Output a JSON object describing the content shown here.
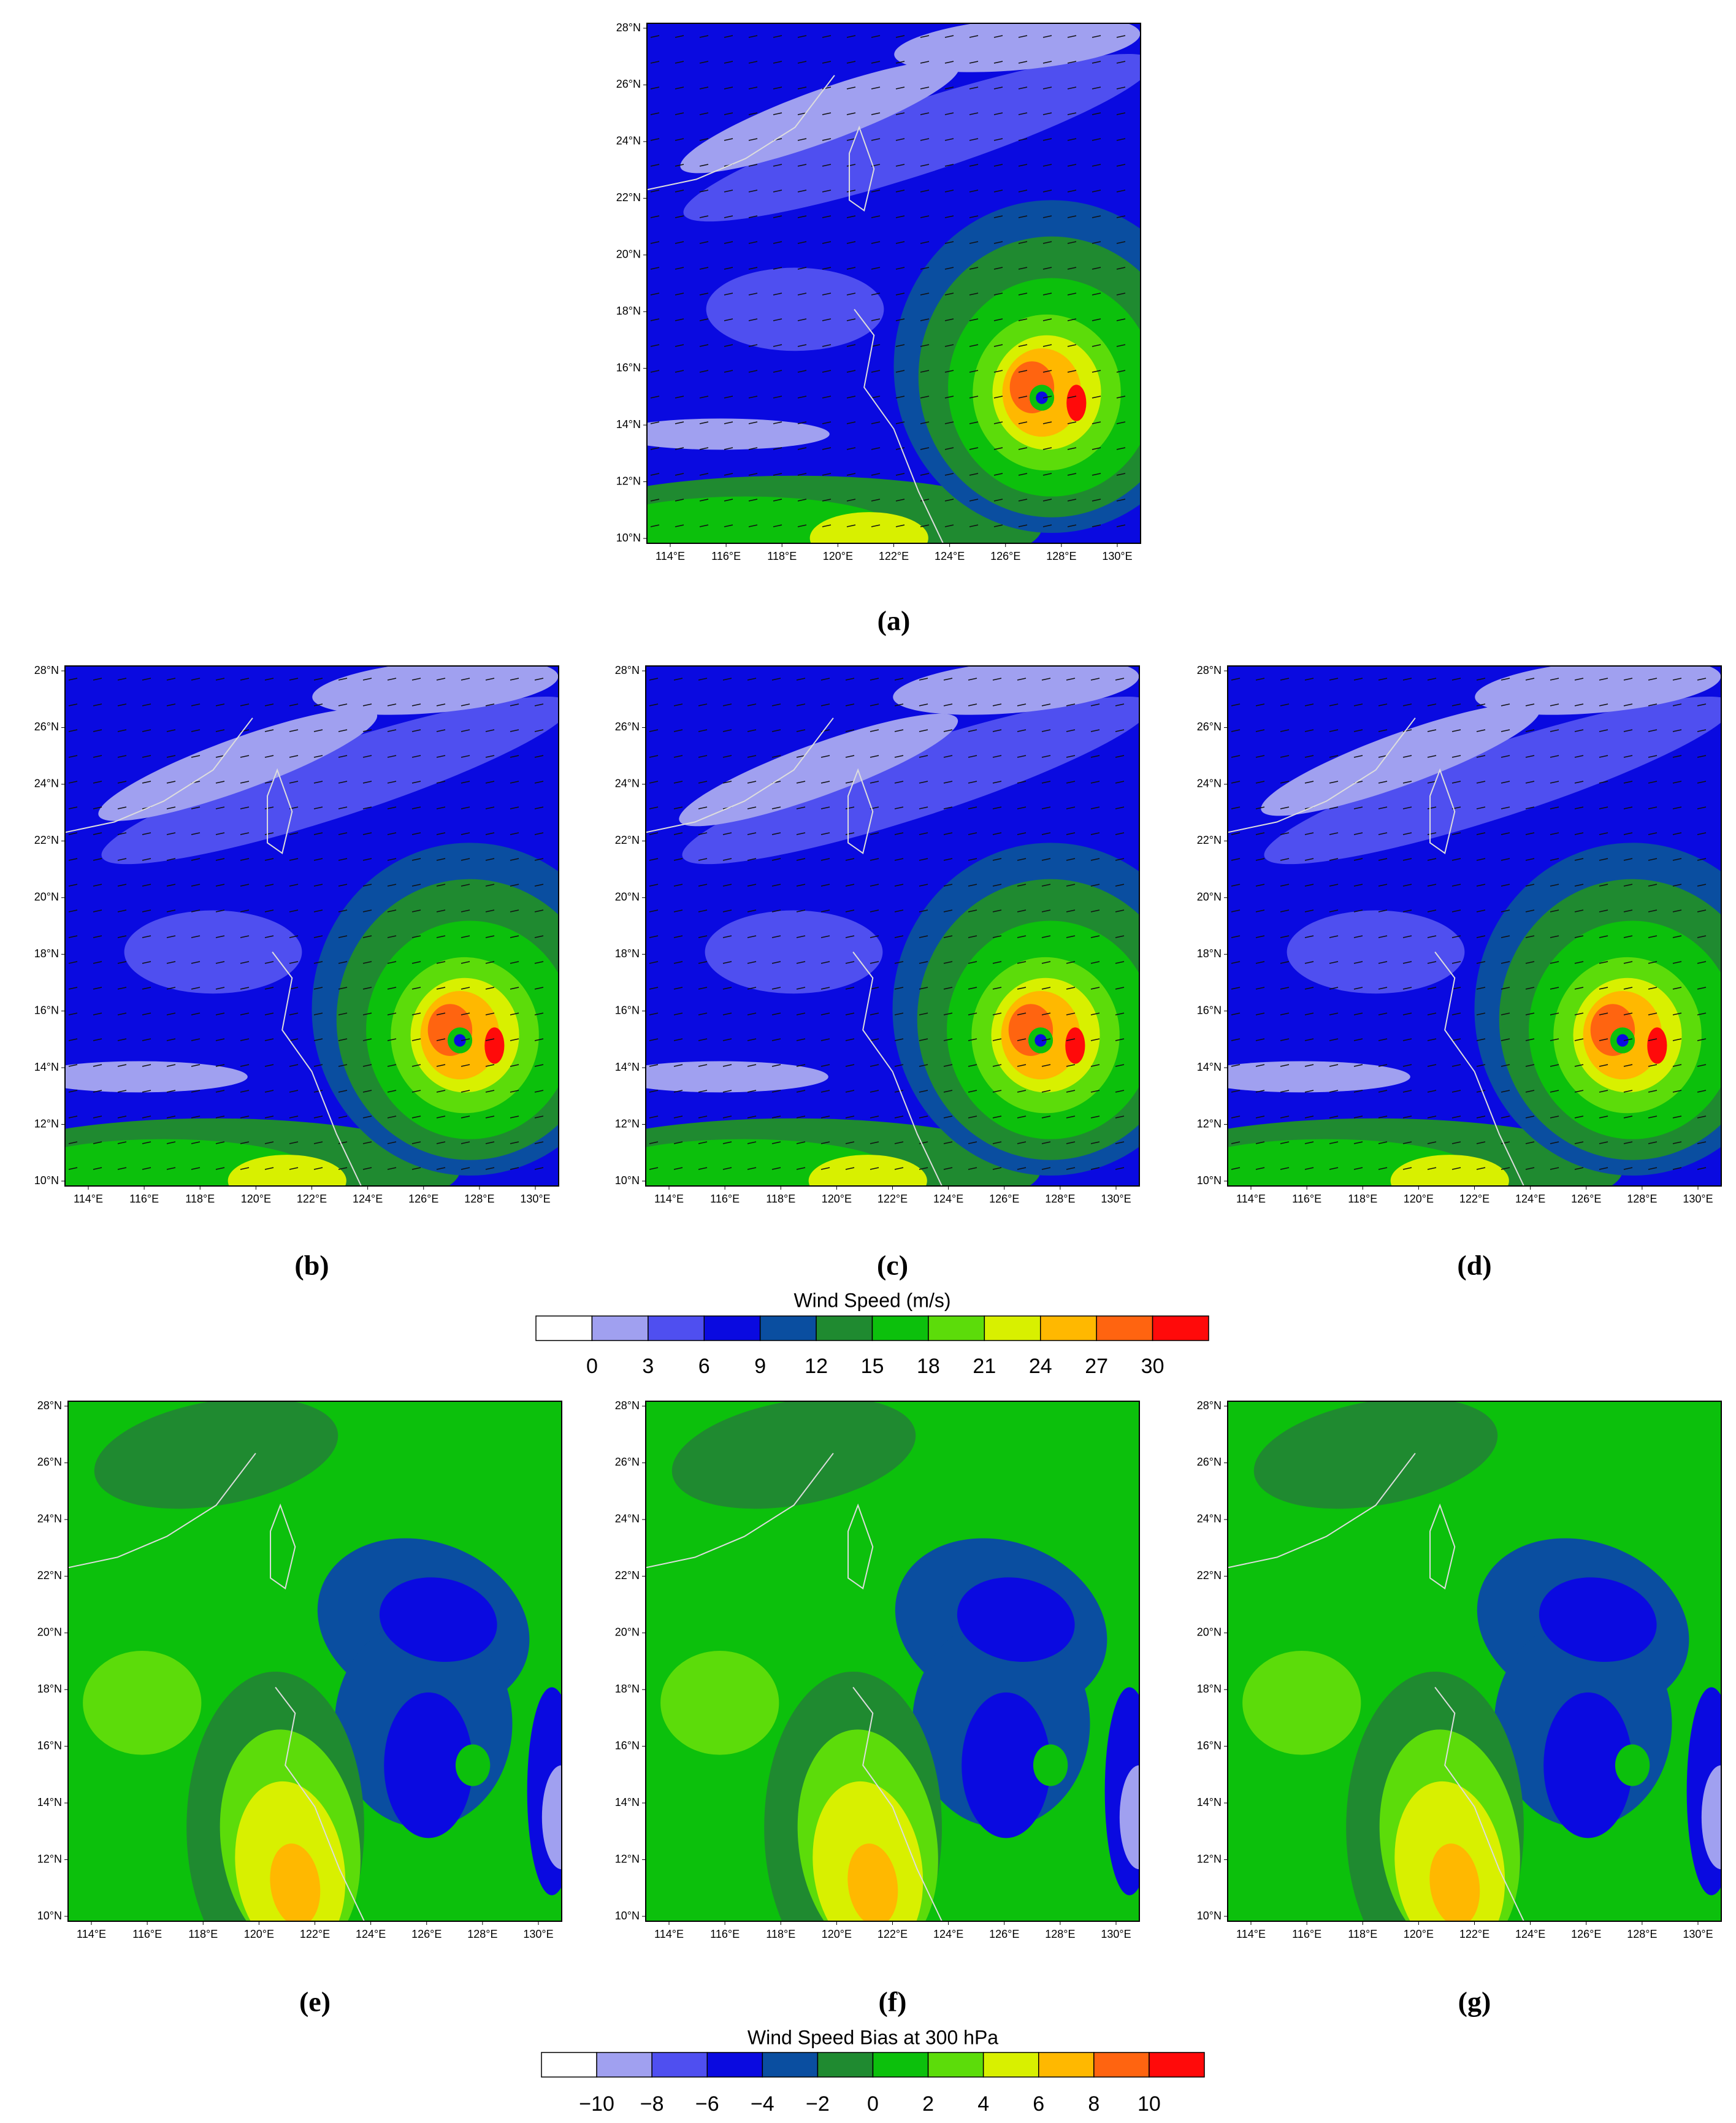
{
  "lat_labels": [
    "28°N",
    "26°N",
    "24°N",
    "22°N",
    "20°N",
    "18°N",
    "16°N",
    "14°N",
    "12°N",
    "10°N"
  ],
  "lon_labels": [
    "114°E",
    "116°E",
    "118°E",
    "120°E",
    "122°E",
    "124°E",
    "126°E",
    "128°E",
    "130°E"
  ],
  "panels": [
    {
      "label": "(a)"
    },
    {
      "label": "(b)"
    },
    {
      "label": "(c)"
    },
    {
      "label": "(d)"
    },
    {
      "label": "(e)"
    },
    {
      "label": "(f)"
    },
    {
      "label": "(g)"
    }
  ],
  "colorbars": [
    {
      "title": "Wind Speed  (m/s)",
      "ticks": [
        "0",
        "3",
        "6",
        "9",
        "12",
        "15",
        "18",
        "21",
        "24",
        "27",
        "30"
      ],
      "colors": [
        "#ffffff",
        "#a0a0f0",
        "#4f4ff0",
        "#0a0ae0",
        "#0a4ea0",
        "#1f8a30",
        "#0cc00c",
        "#5cdc0a",
        "#d8f000",
        "#ffb800",
        "#ff6410",
        "#ff0a0a"
      ]
    },
    {
      "title": "Wind Speed Bias at 300 hPa",
      "ticks": [
        "−10",
        "−8",
        "−6",
        "−4",
        "−2",
        "0",
        "2",
        "4",
        "6",
        "8",
        "10"
      ],
      "colors": [
        "#ffffff",
        "#a0a0f0",
        "#4f4ff0",
        "#0a0ae0",
        "#0a4ea0",
        "#1f8a30",
        "#0cc00c",
        "#5cdc0a",
        "#d8f000",
        "#ffb800",
        "#ff6410",
        "#ff0a0a"
      ]
    }
  ]
}
